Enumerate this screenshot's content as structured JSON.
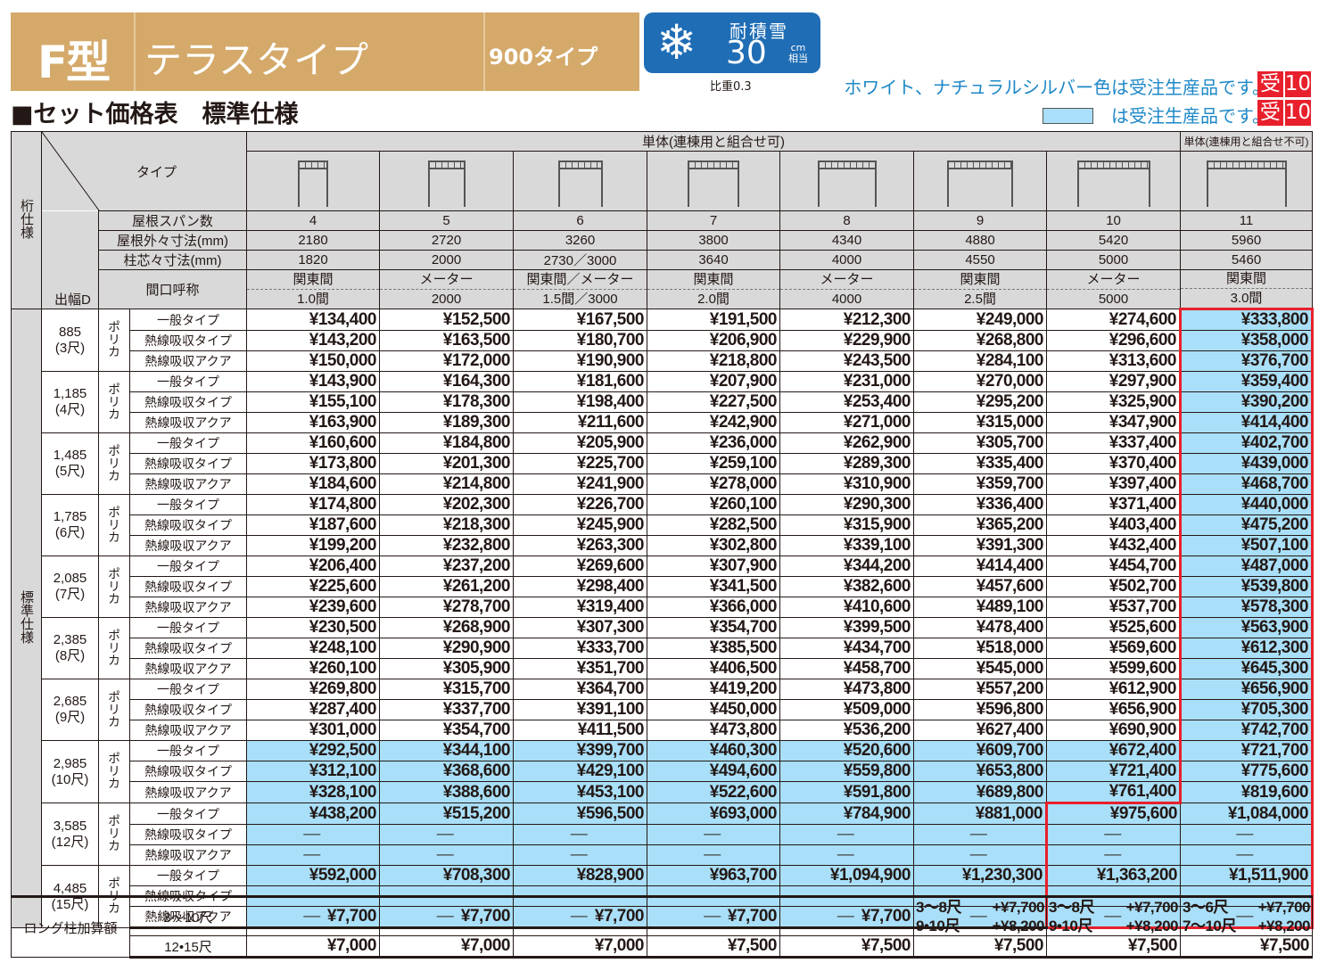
{
  "header": {
    "model": "F型",
    "type_name": "テラスタイプ",
    "sub_type": "900タイプ",
    "snow_badge": {
      "icon": "snowflake-icon",
      "label": "耐積雪",
      "value": "30",
      "unit": "cm",
      "unit_note": "相当",
      "color": "#1f6db5"
    },
    "specific_gravity": "比重0.3",
    "section_title": "■セット価格表　標準仕様",
    "band_color": "#d4a96a"
  },
  "notes": [
    {
      "text": "ホワイト、ナチュラルシルバー色は受注生産品です。",
      "badge": [
        "受",
        "10"
      ]
    },
    {
      "text": "は受注生産品です。",
      "badge": [
        "受",
        "10"
      ],
      "swatch_color": "#a9dff8"
    }
  ],
  "table": {
    "side_labels": {
      "top": "桁仕様",
      "bottom": "標準仕様"
    },
    "group_headers": {
      "joinable": "単体(連棟用と組合せ可)",
      "not_joinable": "単体(連棟用と組合せ不可)"
    },
    "row_headers": {
      "type": "タイプ",
      "span_count": "屋根スパン数",
      "outer_dim": "屋根外々寸法(mm)",
      "post_dim": "柱芯々寸法(mm)",
      "frontage": "間口呼称",
      "depth": "出幅D"
    },
    "columns": [
      {
        "span": "4",
        "outer": "2180",
        "post": "1820",
        "frontage_top": "関東間",
        "frontage_bottom": "1.0間"
      },
      {
        "span": "5",
        "outer": "2720",
        "post": "2000",
        "frontage_top": "メーター",
        "frontage_bottom": "2000"
      },
      {
        "span": "6",
        "outer": "3260",
        "post": "2730／3000",
        "frontage_top": "関東間／メーター",
        "frontage_bottom": "1.5間／3000"
      },
      {
        "span": "7",
        "outer": "3800",
        "post": "3640",
        "frontage_top": "関東間",
        "frontage_bottom": "2.0間"
      },
      {
        "span": "8",
        "outer": "4340",
        "post": "4000",
        "frontage_top": "メーター",
        "frontage_bottom": "4000"
      },
      {
        "span": "9",
        "outer": "4880",
        "post": "4550",
        "frontage_top": "関東間",
        "frontage_bottom": "2.5間"
      },
      {
        "span": "10",
        "outer": "5420",
        "post": "5000",
        "frontage_top": "メーター",
        "frontage_bottom": "5000"
      },
      {
        "span": "11",
        "outer": "5960",
        "post": "5460",
        "frontage_top": "関東間",
        "frontage_bottom": "3.0間"
      }
    ],
    "material": "ポリカ",
    "roof_types": [
      "一般タイプ",
      "熱線吸収タイプ",
      "熱線吸収アクア"
    ],
    "groups": [
      {
        "depth": "885",
        "shaku": "(3尺)",
        "rows": [
          [
            "¥134,400",
            "¥152,500",
            "¥167,500",
            "¥191,500",
            "¥212,300",
            "¥249,000",
            "¥274,600",
            "¥333,800"
          ],
          [
            "¥143,200",
            "¥163,500",
            "¥180,700",
            "¥206,900",
            "¥229,900",
            "¥268,800",
            "¥296,600",
            "¥358,000"
          ],
          [
            "¥150,000",
            "¥172,000",
            "¥190,900",
            "¥218,800",
            "¥243,500",
            "¥284,100",
            "¥313,600",
            "¥376,700"
          ]
        ]
      },
      {
        "depth": "1,185",
        "shaku": "(4尺)",
        "rows": [
          [
            "¥143,900",
            "¥164,300",
            "¥181,600",
            "¥207,900",
            "¥231,000",
            "¥270,000",
            "¥297,900",
            "¥359,400"
          ],
          [
            "¥155,100",
            "¥178,300",
            "¥198,400",
            "¥227,500",
            "¥253,400",
            "¥295,200",
            "¥325,900",
            "¥390,200"
          ],
          [
            "¥163,900",
            "¥189,300",
            "¥211,600",
            "¥242,900",
            "¥271,000",
            "¥315,000",
            "¥347,900",
            "¥414,400"
          ]
        ]
      },
      {
        "depth": "1,485",
        "shaku": "(5尺)",
        "rows": [
          [
            "¥160,600",
            "¥184,800",
            "¥205,900",
            "¥236,000",
            "¥262,900",
            "¥305,700",
            "¥337,400",
            "¥402,700"
          ],
          [
            "¥173,800",
            "¥201,300",
            "¥225,700",
            "¥259,100",
            "¥289,300",
            "¥335,400",
            "¥370,400",
            "¥439,000"
          ],
          [
            "¥184,600",
            "¥214,800",
            "¥241,900",
            "¥278,000",
            "¥310,900",
            "¥359,700",
            "¥397,400",
            "¥468,700"
          ]
        ]
      },
      {
        "depth": "1,785",
        "shaku": "(6尺)",
        "rows": [
          [
            "¥174,800",
            "¥202,300",
            "¥226,700",
            "¥260,100",
            "¥290,300",
            "¥336,400",
            "¥371,400",
            "¥440,000"
          ],
          [
            "¥187,600",
            "¥218,300",
            "¥245,900",
            "¥282,500",
            "¥315,900",
            "¥365,200",
            "¥403,400",
            "¥475,200"
          ],
          [
            "¥199,200",
            "¥232,800",
            "¥263,300",
            "¥302,800",
            "¥339,100",
            "¥391,300",
            "¥432,400",
            "¥507,100"
          ]
        ]
      },
      {
        "depth": "2,085",
        "shaku": "(7尺)",
        "rows": [
          [
            "¥206,400",
            "¥237,200",
            "¥269,600",
            "¥307,900",
            "¥344,200",
            "¥414,400",
            "¥454,700",
            "¥487,000"
          ],
          [
            "¥225,600",
            "¥261,200",
            "¥298,400",
            "¥341,500",
            "¥382,600",
            "¥457,600",
            "¥502,700",
            "¥539,800"
          ],
          [
            "¥239,600",
            "¥278,700",
            "¥319,400",
            "¥366,000",
            "¥410,600",
            "¥489,100",
            "¥537,700",
            "¥578,300"
          ]
        ]
      },
      {
        "depth": "2,385",
        "shaku": "(8尺)",
        "rows": [
          [
            "¥230,500",
            "¥268,900",
            "¥307,300",
            "¥354,700",
            "¥399,500",
            "¥478,400",
            "¥525,600",
            "¥563,900"
          ],
          [
            "¥248,100",
            "¥290,900",
            "¥333,700",
            "¥385,500",
            "¥434,700",
            "¥518,000",
            "¥569,600",
            "¥612,300"
          ],
          [
            "¥260,100",
            "¥305,900",
            "¥351,700",
            "¥406,500",
            "¥458,700",
            "¥545,000",
            "¥599,600",
            "¥645,300"
          ]
        ]
      },
      {
        "depth": "2,685",
        "shaku": "(9尺)",
        "rows": [
          [
            "¥269,800",
            "¥315,700",
            "¥364,700",
            "¥419,200",
            "¥473,800",
            "¥557,200",
            "¥612,900",
            "¥656,900"
          ],
          [
            "¥287,400",
            "¥337,700",
            "¥391,100",
            "¥450,000",
            "¥509,000",
            "¥596,800",
            "¥656,900",
            "¥705,300"
          ],
          [
            "¥301,000",
            "¥354,700",
            "¥411,500",
            "¥473,800",
            "¥536,200",
            "¥627,400",
            "¥690,900",
            "¥742,700"
          ]
        ]
      },
      {
        "depth": "2,985",
        "shaku": "(10尺)",
        "rows": [
          [
            "¥292,500",
            "¥344,100",
            "¥399,700",
            "¥460,300",
            "¥520,600",
            "¥609,700",
            "¥672,400",
            "¥721,700"
          ],
          [
            "¥312,100",
            "¥368,600",
            "¥429,100",
            "¥494,600",
            "¥559,800",
            "¥653,800",
            "¥721,400",
            "¥775,600"
          ],
          [
            "¥328,100",
            "¥388,600",
            "¥453,100",
            "¥522,600",
            "¥591,800",
            "¥689,800",
            "¥761,400",
            "¥819,600"
          ]
        ]
      },
      {
        "depth": "3,585",
        "shaku": "(12尺)",
        "rows": [
          [
            "¥438,200",
            "¥515,200",
            "¥596,500",
            "¥693,000",
            "¥784,900",
            "¥881,000",
            "¥975,600",
            "¥1,084,000"
          ],
          [
            "—",
            "—",
            "—",
            "—",
            "—",
            "—",
            "—",
            "—"
          ],
          [
            "—",
            "—",
            "—",
            "—",
            "—",
            "—",
            "—",
            "—"
          ]
        ]
      },
      {
        "depth": "4,485",
        "shaku": "(15尺)",
        "rows": [
          [
            "¥592,000",
            "¥708,300",
            "¥828,900",
            "¥963,700",
            "¥1,094,900",
            "¥1,230,300",
            "¥1,363,200",
            "¥1,511,900"
          ],
          [
            "—",
            "—",
            "—",
            "—",
            "—",
            "—",
            "—",
            "—"
          ],
          [
            "—",
            "—",
            "—",
            "—",
            "—",
            "—",
            "—",
            "—"
          ]
        ]
      }
    ],
    "highlight_color": "#a9dff8",
    "outline_color": "#e8202c"
  },
  "long_post": {
    "label": "ロング柱加算額",
    "rows": [
      {
        "range": "3〜10尺",
        "values": [
          "¥7,700",
          "¥7,700",
          "¥7,700",
          "¥7,700",
          "¥7,700"
        ],
        "split": [
          [
            [
              "3〜8尺",
              "+¥7,700"
            ],
            [
              "9•10尺",
              "+¥8,200"
            ]
          ],
          [
            [
              "3〜8尺",
              "+¥7,700"
            ],
            [
              "9•10尺",
              "+¥8,200"
            ]
          ],
          [
            [
              "3〜6尺",
              "+¥7,700"
            ],
            [
              "7〜10尺",
              "+¥8,200"
            ]
          ]
        ]
      },
      {
        "range": "12•15尺",
        "values": [
          "¥7,000",
          "¥7,000",
          "¥7,000",
          "¥7,500",
          "¥7,500",
          "¥7,500",
          "¥7,500",
          "¥7,500"
        ]
      }
    ]
  }
}
